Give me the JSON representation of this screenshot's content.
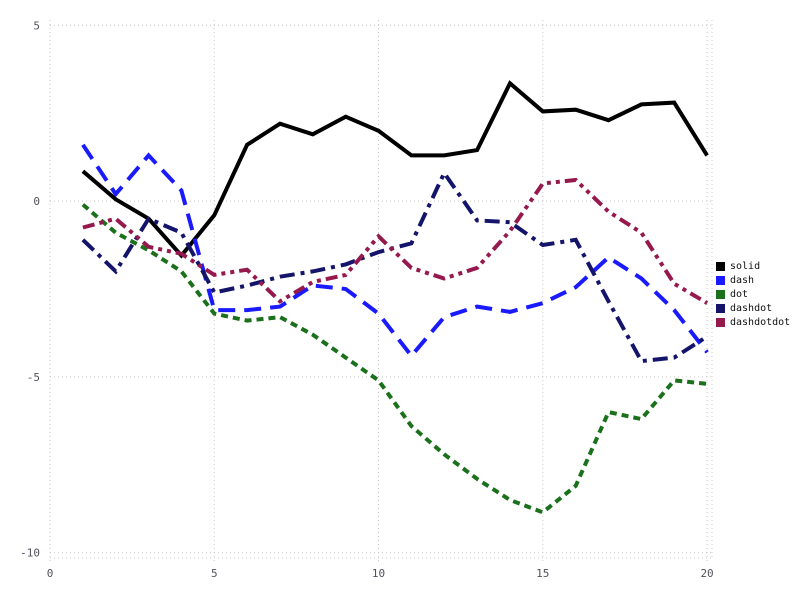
{
  "window": {
    "background": "#ffffff"
  },
  "chart_data": {
    "type": "line",
    "title": "",
    "xlabel": "",
    "ylabel": "",
    "xlim": [
      0,
      20.15
    ],
    "ylim": [
      -10.15,
      5.15
    ],
    "xticks": [
      0,
      5,
      10,
      15,
      20
    ],
    "yticks": [
      5,
      0,
      -5,
      -10
    ],
    "grid": true,
    "grid_style": "dotted",
    "grid_color": "#c9c9c9",
    "tick_label_color": "#52525c",
    "legend_position": "right-outside",
    "x": [
      1,
      2,
      3,
      4,
      5,
      6,
      7,
      8,
      9,
      10,
      11,
      12,
      13,
      14,
      15,
      16,
      17,
      18,
      19,
      20
    ],
    "series": [
      {
        "name": "solid",
        "style": "solid",
        "color": "#000000",
        "values": [
          0.85,
          0.05,
          -0.5,
          -1.55,
          -0.4,
          1.6,
          2.2,
          1.9,
          2.4,
          2.0,
          1.3,
          1.3,
          1.45,
          3.35,
          2.55,
          2.6,
          2.3,
          2.75,
          2.8,
          1.3
        ]
      },
      {
        "name": "dash",
        "style": "dash",
        "color": "#1a1aff",
        "values": [
          1.6,
          0.2,
          1.3,
          0.3,
          -3.1,
          -3.1,
          -3.0,
          -2.4,
          -2.5,
          -3.2,
          -4.4,
          -3.3,
          -3.0,
          -3.15,
          -2.9,
          -2.45,
          -1.6,
          -2.2,
          -3.1,
          -4.3
        ]
      },
      {
        "name": "dot",
        "style": "dot",
        "color": "#1b701b",
        "values": [
          -0.1,
          -0.9,
          -1.4,
          -2.0,
          -3.2,
          -3.4,
          -3.3,
          -3.8,
          -4.45,
          -5.1,
          -6.4,
          -7.2,
          -7.9,
          -8.5,
          -8.85,
          -8.1,
          -6.0,
          -6.2,
          -5.1,
          -5.2
        ]
      },
      {
        "name": "dashdot",
        "style": "dashdot",
        "color": "#14146b",
        "values": [
          -1.1,
          -2.0,
          -0.5,
          -0.9,
          -2.6,
          -2.4,
          -2.15,
          -2.0,
          -1.8,
          -1.45,
          -1.2,
          0.8,
          -0.55,
          -0.6,
          -1.25,
          -1.1,
          -2.85,
          -4.55,
          -4.45,
          -3.85
        ]
      },
      {
        "name": "dashdotdot",
        "style": "dashdotdot",
        "color": "#96194e",
        "values": [
          -0.75,
          -0.5,
          -1.3,
          -1.5,
          -2.1,
          -1.95,
          -2.85,
          -2.3,
          -2.1,
          -1.0,
          -1.9,
          -2.2,
          -1.9,
          -0.85,
          0.5,
          0.6,
          -0.3,
          -0.9,
          -2.35,
          -2.9
        ]
      }
    ],
    "legend": [
      "solid",
      "dash",
      "dot",
      "dashdot",
      "dashdotdot"
    ]
  }
}
